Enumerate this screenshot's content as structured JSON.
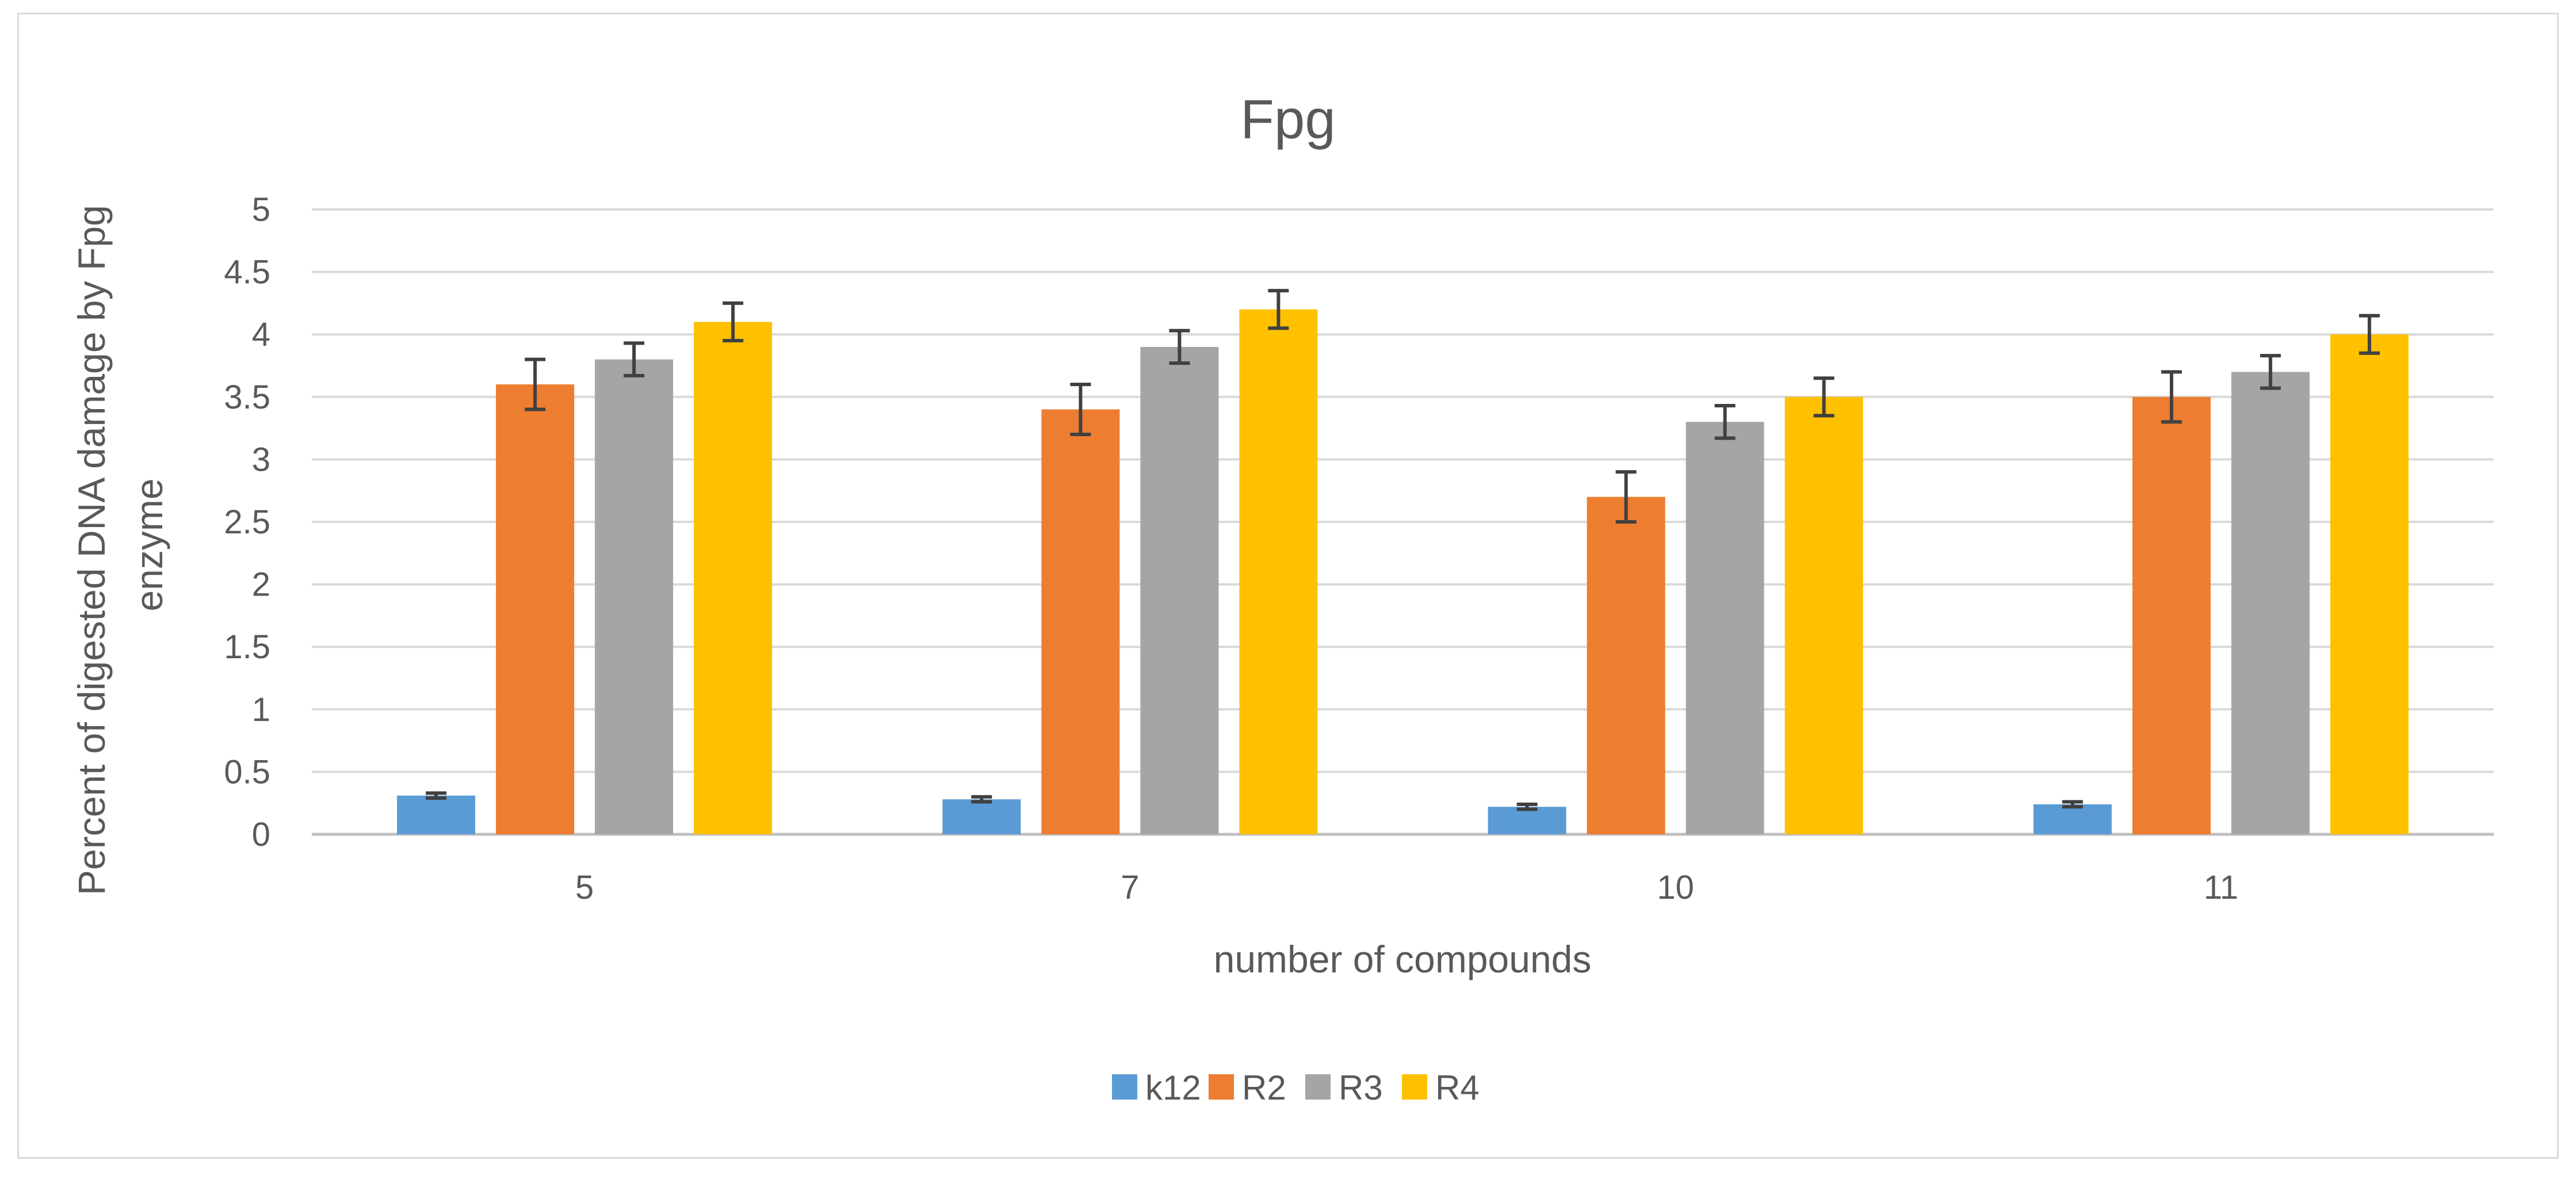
{
  "chart_data": {
    "type": "bar",
    "title": "Fpg",
    "xlabel": "number of compounds",
    "ylabel": "Percent of digested DNA damage by Fpg enzyme",
    "ylabel_lines": [
      "Percent of digested DNA damage by Fpg",
      "enzyme"
    ],
    "categories": [
      "5",
      "7",
      "10",
      "11"
    ],
    "ylim": [
      0,
      5
    ],
    "yticks": [
      0,
      0.5,
      1,
      1.5,
      2,
      2.5,
      3,
      3.5,
      4,
      4.5,
      5
    ],
    "ytick_labels": [
      "0",
      "0.5",
      "1",
      "1.5",
      "2",
      "2.5",
      "3",
      "3.5",
      "4",
      "4.5",
      "5"
    ],
    "grid": true,
    "legend_position": "bottom",
    "series": [
      {
        "name": "k12",
        "color": "#5b9bd5",
        "values": [
          0.31,
          0.28,
          0.22,
          0.24
        ],
        "errors": [
          0.02,
          0.02,
          0.02,
          0.02
        ]
      },
      {
        "name": "R2",
        "color": "#ed7d31",
        "values": [
          3.6,
          3.4,
          2.7,
          3.5
        ],
        "errors": [
          0.2,
          0.2,
          0.2,
          0.2
        ]
      },
      {
        "name": "R3",
        "color": "#a5a5a5",
        "values": [
          3.8,
          3.9,
          3.3,
          3.7
        ],
        "errors": [
          0.13,
          0.13,
          0.13,
          0.13
        ]
      },
      {
        "name": "R4",
        "color": "#ffc000",
        "values": [
          4.1,
          4.2,
          3.5,
          4.0
        ],
        "errors": [
          0.15,
          0.15,
          0.15,
          0.15
        ]
      }
    ]
  }
}
